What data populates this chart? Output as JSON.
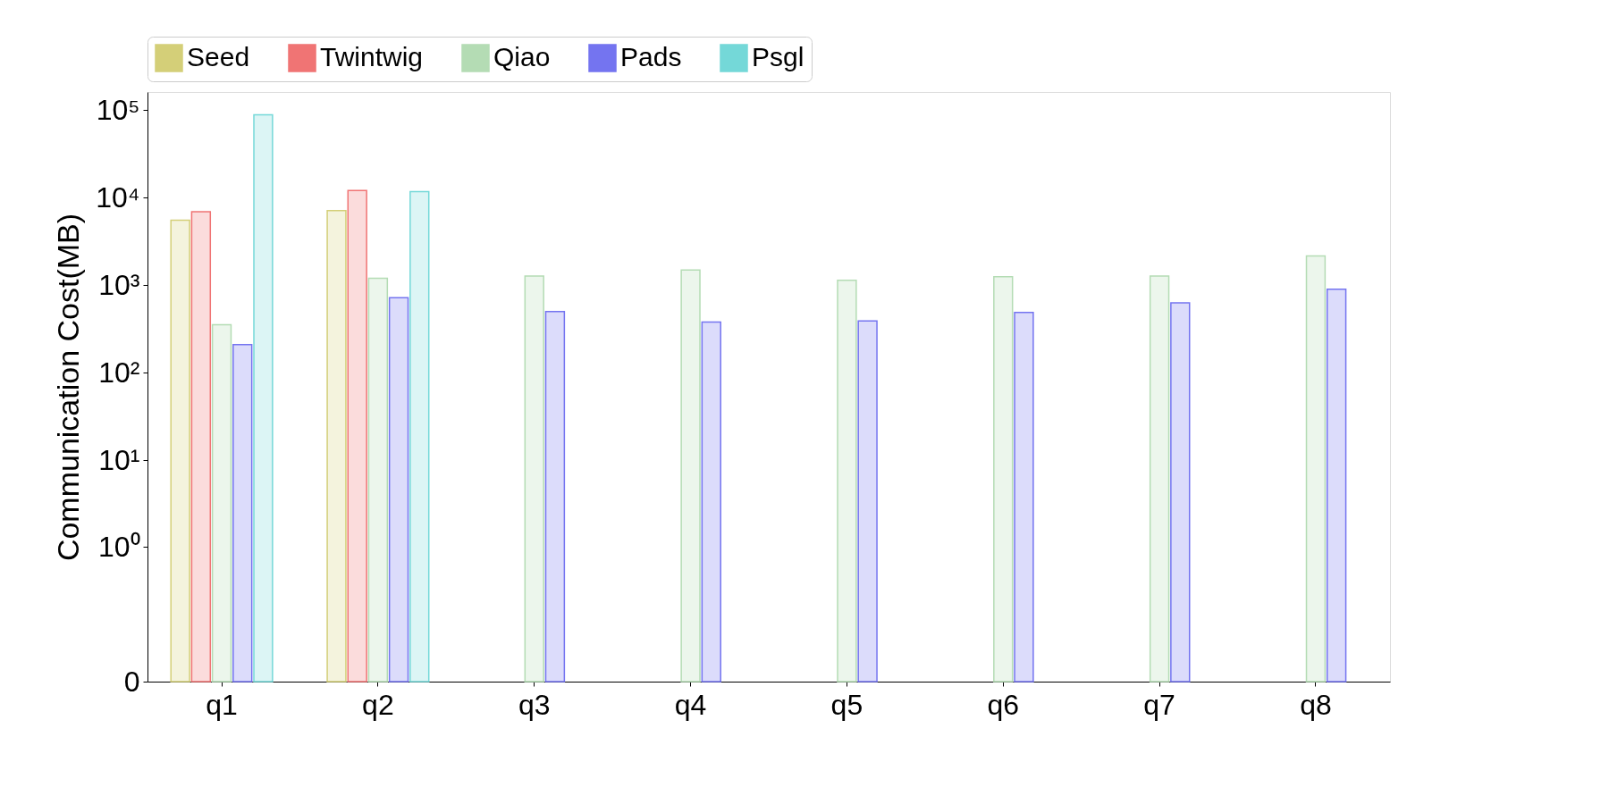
{
  "chart_data": {
    "type": "bar",
    "ylabel": "Communication Cost(MB)",
    "categories": [
      "q1",
      "q2",
      "q3",
      "q4",
      "q5",
      "q6",
      "q7",
      "q8"
    ],
    "series": [
      {
        "name": "Seed",
        "color": "#d4cf78",
        "values": [
          5500,
          7100,
          null,
          null,
          null,
          null,
          null,
          null
        ]
      },
      {
        "name": "Twintwig",
        "color": "#f07474",
        "values": [
          6900,
          12000,
          null,
          null,
          null,
          null,
          null,
          null
        ]
      },
      {
        "name": "Qiao",
        "color": "#b4dcb4",
        "values": [
          355,
          1200,
          1270,
          1490,
          1140,
          1250,
          1270,
          2160
        ]
      },
      {
        "name": "Pads",
        "color": "#7474f0",
        "values": [
          210,
          720,
          500,
          380,
          390,
          490,
          630,
          900
        ]
      },
      {
        "name": "Psgl",
        "color": "#74d8d8",
        "values": [
          88000,
          11700,
          null,
          null,
          null,
          null,
          null,
          null
        ]
      }
    ],
    "log": "y",
    "ylim": [
      0,
      160000
    ],
    "yticks": [
      0,
      {
        "value": 1,
        "label": "10⁰"
      },
      {
        "value": 10,
        "label": "10¹"
      },
      {
        "value": 100,
        "label": "10²"
      },
      {
        "value": 1000,
        "label": "10³"
      },
      {
        "value": 10000,
        "label": "10⁴"
      },
      {
        "value": 100000,
        "label": "10⁵"
      }
    ],
    "grid": false,
    "legend": "top"
  }
}
